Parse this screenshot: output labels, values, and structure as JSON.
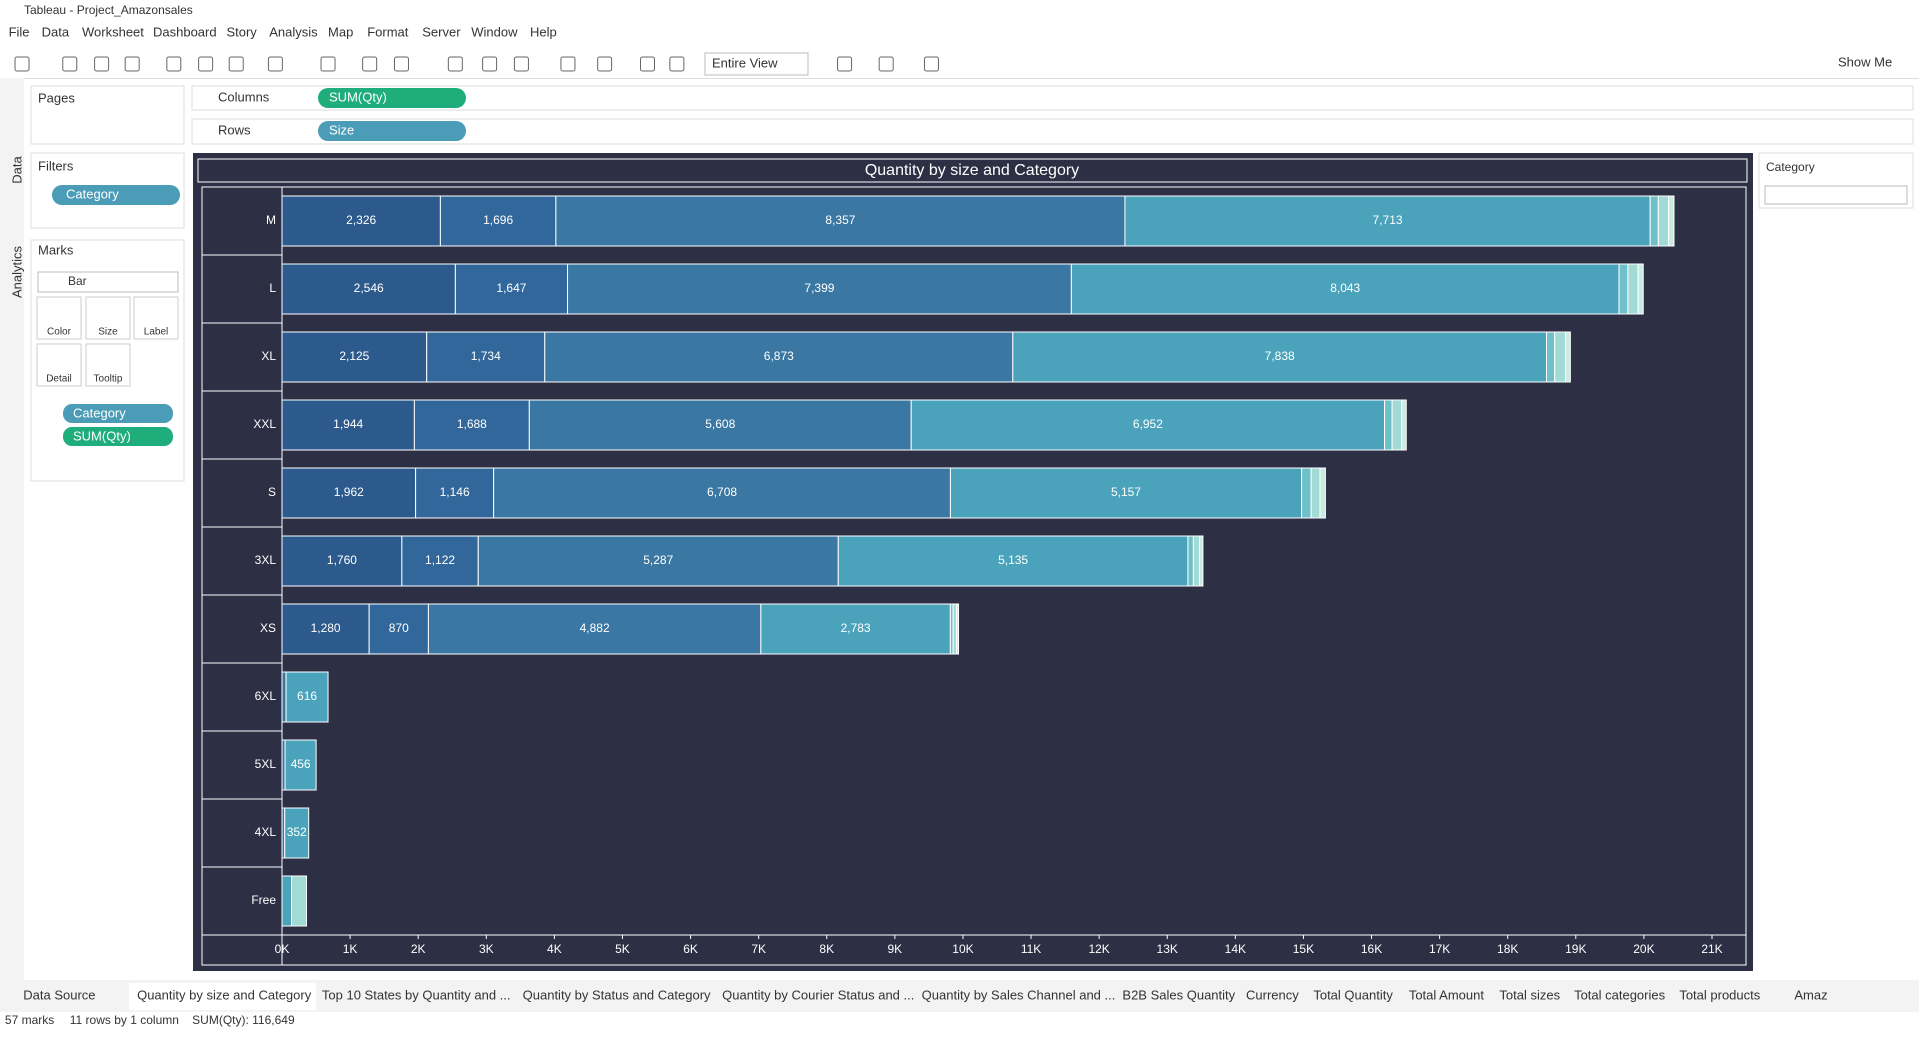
{
  "ui": {
    "window_title": "Tableau - Project_Amazonsales",
    "menu": [
      "File",
      "Data",
      "Worksheet",
      "Dashboard",
      "Story",
      "Analysis",
      "Map",
      "Format",
      "Server",
      "Window",
      "Help"
    ],
    "toolbar": {
      "fit": "Entire View",
      "show_me": "Show Me"
    },
    "side_tabs": [
      "Data",
      "Analytics"
    ],
    "pages": "Pages",
    "filters": "Filters",
    "filter_pill": "Category",
    "marks": "Marks",
    "mark_type": "Bar",
    "mark_buttons": [
      "Color",
      "Size",
      "Label",
      "Detail",
      "Tooltip"
    ],
    "mark_pills": [
      "Category",
      "SUM(Qty)"
    ],
    "columns": "Columns",
    "columns_pill": "SUM(Qty)",
    "rows": "Rows",
    "rows_pill": "Size",
    "legend_title": "Category",
    "tabs": [
      "Data Source",
      "Quantity by size and Category",
      "Top 10 States by Quantity and ...",
      "Quantity by Status and Category",
      "Quantity by Courier Status and ...",
      "Quantity by Sales Channel and ...",
      "B2B Sales Quantity",
      "Currency",
      "Total Quantity",
      "Total Amount",
      "Total sizes",
      "Total categories",
      "Total products",
      "Amaz"
    ],
    "status": [
      "57 marks",
      "11 rows by 1 column",
      "SUM(Qty): 116,649"
    ]
  },
  "chart_data": {
    "type": "stacked_barh",
    "title": "Quantity by size and Category",
    "categories": [
      "M",
      "L",
      "XL",
      "XXL",
      "S",
      "3XL",
      "XS",
      "6XL",
      "5XL",
      "4XL",
      "Free"
    ],
    "series": [
      {
        "color": "#2c5a8c",
        "values": [
          2326,
          2546,
          2125,
          1944,
          1962,
          1760,
          1280,
          null,
          null,
          null,
          null
        ],
        "value_labels": [
          "2,326",
          "2,546",
          "2,125",
          "1,944",
          "1,962",
          "1,760",
          "1,280",
          null,
          null,
          null,
          null
        ]
      },
      {
        "color": "#31679a",
        "values": [
          1696,
          1647,
          1734,
          1688,
          1146,
          1122,
          870,
          null,
          null,
          null,
          null
        ],
        "value_labels": [
          "1,696",
          "1,647",
          "1,734",
          "1,688",
          "1,146",
          "1,122",
          "870",
          null,
          null,
          null,
          null
        ]
      },
      {
        "color": "#3a77a2",
        "values": [
          8357,
          7399,
          6873,
          5608,
          6708,
          5287,
          4882,
          60,
          45,
          40,
          null
        ],
        "value_labels": [
          "8,357",
          "7,399",
          "6,873",
          "5,608",
          "6,708",
          "5,287",
          "4,882",
          null,
          null,
          null,
          null
        ]
      },
      {
        "color": "#4aa3bb",
        "values": [
          7713,
          8043,
          7838,
          6952,
          5157,
          5135,
          2783,
          616,
          456,
          352,
          140
        ],
        "value_labels": [
          "7,713",
          "8,043",
          "7,838",
          "6,952",
          "5,157",
          "5,135",
          "2,783",
          "616",
          "456",
          "352",
          null
        ]
      },
      {
        "color": "#6fc0c8",
        "values": [
          120,
          130,
          120,
          110,
          140,
          80,
          40,
          null,
          null,
          null,
          null
        ]
      },
      {
        "color": "#a2dad6",
        "values": [
          150,
          150,
          160,
          140,
          130,
          90,
          50,
          null,
          null,
          null,
          220
        ]
      },
      {
        "color": "#c8ebe2",
        "values": [
          80,
          75,
          70,
          68,
          80,
          50,
          30,
          null,
          null,
          null,
          null
        ]
      }
    ],
    "xlim": [
      0,
      21000
    ],
    "xticks": [
      {
        "value": 0,
        "label": "0K"
      },
      {
        "value": 1000,
        "label": "1K"
      },
      {
        "value": 2000,
        "label": "2K"
      },
      {
        "value": 3000,
        "label": "3K"
      },
      {
        "value": 4000,
        "label": "4K"
      },
      {
        "value": 5000,
        "label": "5K"
      },
      {
        "value": 6000,
        "label": "6K"
      },
      {
        "value": 7000,
        "label": "7K"
      },
      {
        "value": 8000,
        "label": "8K"
      },
      {
        "value": 9000,
        "label": "9K"
      },
      {
        "value": 10000,
        "label": "10K"
      },
      {
        "value": 11000,
        "label": "11K"
      },
      {
        "value": 12000,
        "label": "12K"
      },
      {
        "value": 13000,
        "label": "13K"
      },
      {
        "value": 14000,
        "label": "14K"
      },
      {
        "value": 15000,
        "label": "15K"
      },
      {
        "value": 16000,
        "label": "16K"
      },
      {
        "value": 17000,
        "label": "17K"
      },
      {
        "value": 18000,
        "label": "18K"
      },
      {
        "value": 19000,
        "label": "19K"
      },
      {
        "value": 20000,
        "label": "20K"
      },
      {
        "value": 21000,
        "label": "21K"
      }
    ],
    "grid": false
  }
}
